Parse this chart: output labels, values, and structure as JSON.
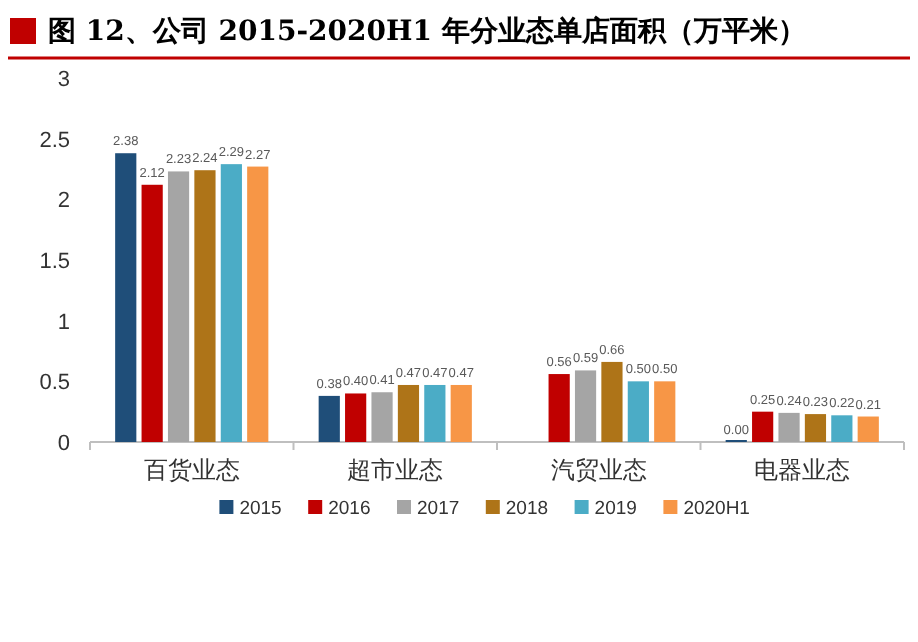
{
  "chart_data": {
    "type": "bar",
    "title": "图 12、公司 2015-2020H1 年分业态单店面积（万平米）",
    "categories": [
      "百货业态",
      "超市业态",
      "汽贸业态",
      "电器业态"
    ],
    "series": [
      {
        "name": "2015",
        "color": "#1f4e79",
        "values": [
          2.38,
          0.38,
          null,
          0
        ],
        "value_labels": [
          "2.38",
          "0.38",
          null,
          "0.00"
        ]
      },
      {
        "name": "2016",
        "color": "#c00000",
        "values": [
          2.12,
          0.4,
          0.56,
          0.25
        ],
        "value_labels": [
          "2.12",
          "0.40",
          "0.56",
          "0.25"
        ]
      },
      {
        "name": "2017",
        "color": "#a5a5a5",
        "values": [
          2.23,
          0.41,
          0.59,
          0.24
        ],
        "value_labels": [
          "2.23",
          "0.41",
          "0.59",
          "0.24"
        ]
      },
      {
        "name": "2018",
        "color": "#ae7418",
        "values": [
          2.24,
          0.47,
          0.66,
          0.23
        ],
        "value_labels": [
          "2.24",
          "0.47",
          "0.66",
          "0.23"
        ]
      },
      {
        "name": "2019",
        "color": "#4bacc6",
        "values": [
          2.29,
          0.47,
          0.5,
          0.22
        ],
        "value_labels": [
          "2.29",
          "0.47",
          "0.50",
          "0.22"
        ]
      },
      {
        "name": "2020H1",
        "color": "#f79646",
        "values": [
          2.27,
          0.47,
          0.5,
          0.21
        ],
        "value_labels": [
          "2.27",
          "0.47",
          "0.50",
          "0.21"
        ]
      }
    ],
    "ylim": [
      0,
      3
    ],
    "yticks": [
      0,
      0.5,
      1,
      1.5,
      2,
      2.5,
      3
    ],
    "grid": false,
    "legend": "bottom"
  }
}
